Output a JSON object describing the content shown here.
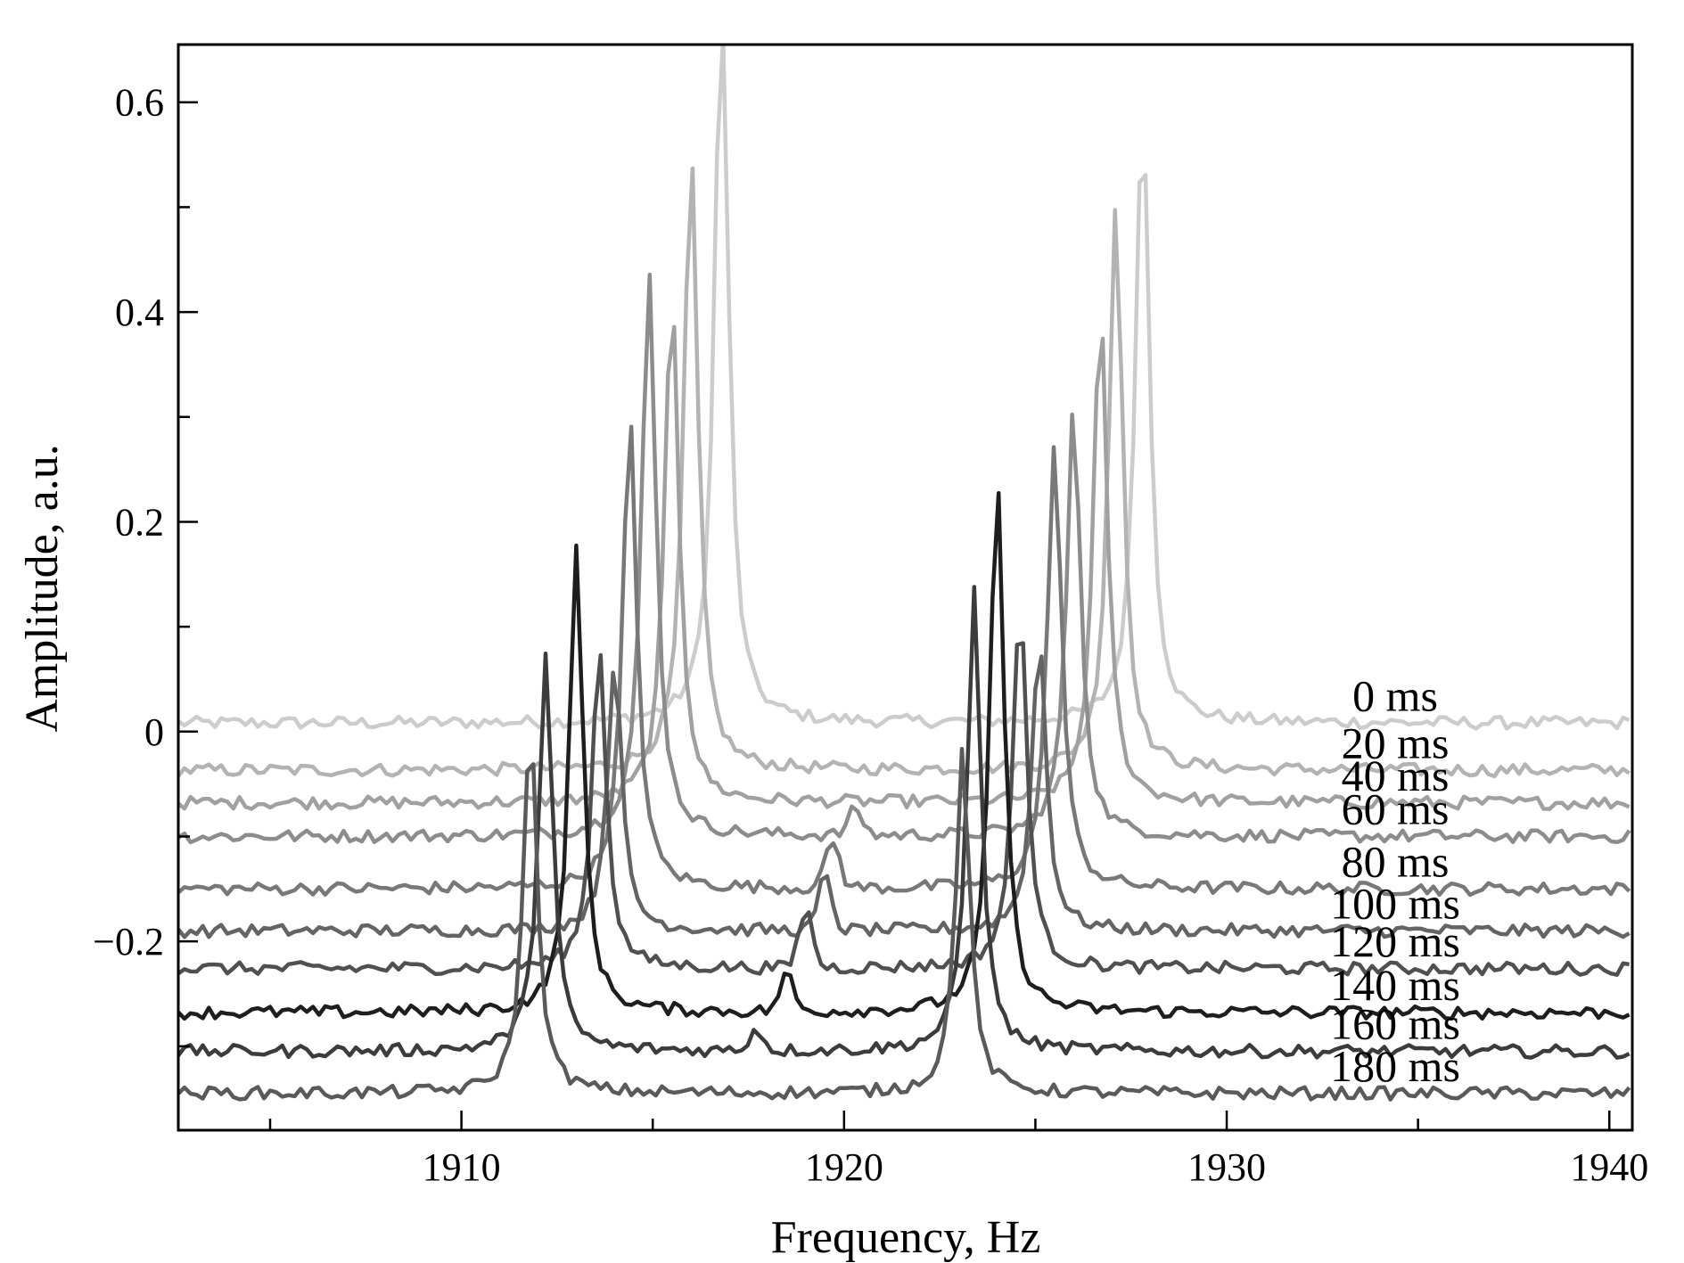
{
  "chart_data": {
    "type": "line",
    "title": "",
    "xlabel": "Frequency, Hz",
    "ylabel": "Amplitude, a.u.",
    "xlim": [
      1902.6,
      1940.6
    ],
    "ylim": [
      -0.38,
      0.655
    ],
    "x_ticks": [
      1910,
      1920,
      1930,
      1940
    ],
    "x_tick_labels": [
      "1910",
      "1920",
      "1930",
      "1940"
    ],
    "x_minor_ticks": [
      1905,
      1915,
      1925,
      1935
    ],
    "y_ticks": [
      -0.2,
      0,
      0.2,
      0.4,
      0.6
    ],
    "y_tick_labels": [
      "−0.2",
      "0",
      "0.2",
      "0.4",
      "0.6"
    ],
    "y_minor_ticks": [
      -0.3,
      -0.1,
      0.1,
      0.3,
      0.5
    ],
    "grid": false,
    "legend": "inline labels at right end of each trace",
    "series": [
      {
        "name": "0 ms",
        "color": "#cccccc",
        "baseline": 0.008,
        "peaks": [
          {
            "x": 1916.8,
            "h": 0.7
          },
          {
            "x": 1927.8,
            "h": 0.59
          }
        ]
      },
      {
        "name": "20 ms",
        "color": "#b3b3b3",
        "baseline": -0.037,
        "peaks": [
          {
            "x": 1916.0,
            "h": 0.59
          },
          {
            "x": 1927.1,
            "h": 0.54
          }
        ]
      },
      {
        "name": "40 ms",
        "color": "#a0a0a0",
        "baseline": -0.068,
        "peaks": [
          {
            "x": 1915.5,
            "h": 0.49
          },
          {
            "x": 1926.7,
            "h": 0.47
          }
        ]
      },
      {
        "name": "60 ms",
        "color": "#8c8c8c",
        "baseline": -0.1,
        "peaks": [
          {
            "x": 1914.9,
            "h": 0.54
          },
          {
            "x": 1926.0,
            "h": 0.41
          }
        ],
        "bumps": [
          {
            "x": 1920.3,
            "h": 0.025
          }
        ]
      },
      {
        "name": "80 ms",
        "color": "#787878",
        "baseline": -0.15,
        "peaks": [
          {
            "x": 1914.4,
            "h": 0.45
          },
          {
            "x": 1925.5,
            "h": 0.43
          }
        ],
        "bumps": [
          {
            "x": 1919.7,
            "h": 0.045
          }
        ]
      },
      {
        "name": "100 ms",
        "color": "#646464",
        "baseline": -0.19,
        "peaks": [
          {
            "x": 1914.0,
            "h": 0.26
          },
          {
            "x": 1925.1,
            "h": 0.28
          }
        ],
        "bumps": [
          {
            "x": 1919.5,
            "h": 0.05
          }
        ]
      },
      {
        "name": "120 ms",
        "color": "#505050",
        "baseline": -0.226,
        "peaks": [
          {
            "x": 1913.6,
            "h": 0.31
          },
          {
            "x": 1924.6,
            "h": 0.35
          }
        ],
        "bumps": [
          {
            "x": 1919.0,
            "h": 0.055
          }
        ]
      },
      {
        "name": "140 ms",
        "color": "#1e1e1e",
        "baseline": -0.268,
        "peaks": [
          {
            "x": 1913.0,
            "h": 0.44
          },
          {
            "x": 1924.0,
            "h": 0.51
          }
        ],
        "bumps": [
          {
            "x": 1918.5,
            "h": 0.035
          }
        ]
      },
      {
        "name": "160 ms",
        "color": "#3c3c3c",
        "baseline": -0.305,
        "peaks": [
          {
            "x": 1912.2,
            "h": 0.38
          },
          {
            "x": 1923.4,
            "h": 0.44
          }
        ],
        "bumps": [
          {
            "x": 1917.7,
            "h": 0.02
          }
        ]
      },
      {
        "name": "180 ms",
        "color": "#5a5a5a",
        "baseline": -0.345,
        "peaks": [
          {
            "x": 1911.8,
            "h": 0.35
          },
          {
            "x": 1923.1,
            "h": 0.33
          }
        ]
      }
    ]
  }
}
